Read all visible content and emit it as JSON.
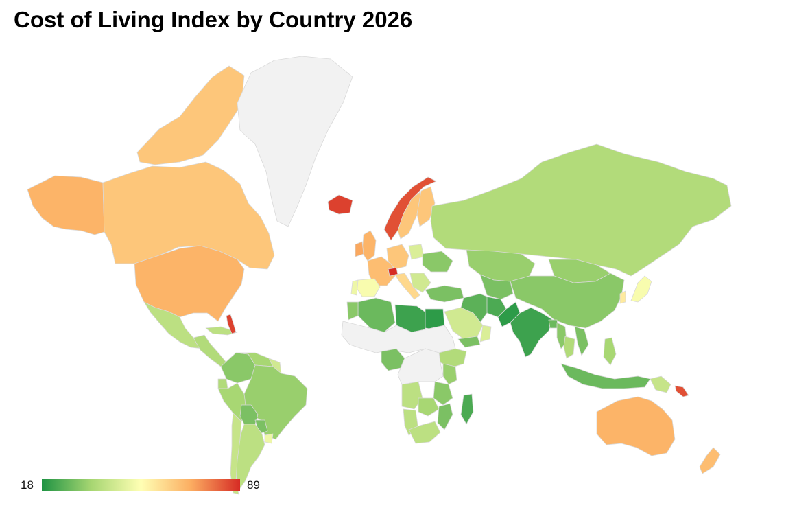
{
  "title": "Cost of Living Index by Country 2026",
  "legend": {
    "min_label": "18",
    "max_label": "89",
    "min_value": 18,
    "max_value": 89,
    "gradient_colors": [
      "#1e9343",
      "#a7d672",
      "#ffffb4",
      "#fcae62",
      "#d62b24"
    ]
  },
  "colors": {
    "no_data": "#f2f2f2",
    "border": "#d9d9d9",
    "background": "#ffffff"
  },
  "regions": [
    {
      "name": "Alaska",
      "value": 70
    },
    {
      "name": "Canada",
      "value": 66
    },
    {
      "name": "Canadian Arctic Archipelago",
      "value": 66
    },
    {
      "name": "Greenland",
      "value": null
    },
    {
      "name": "United States",
      "value": 70
    },
    {
      "name": "Mexico",
      "value": 40
    },
    {
      "name": "Central America",
      "value": 38
    },
    {
      "name": "Cuba",
      "value": 40
    },
    {
      "name": "Bahamas",
      "value": 86
    },
    {
      "name": "Colombia",
      "value": 32
    },
    {
      "name": "Venezuela",
      "value": 36
    },
    {
      "name": "Guyana",
      "value": 44
    },
    {
      "name": "Ecuador",
      "value": 38
    },
    {
      "name": "Peru",
      "value": 36
    },
    {
      "name": "Brazil",
      "value": 34
    },
    {
      "name": "Bolivia",
      "value": 30
    },
    {
      "name": "Paraguay",
      "value": 30
    },
    {
      "name": "Uruguay",
      "value": 50
    },
    {
      "name": "Argentina",
      "value": 40
    },
    {
      "name": "Chile",
      "value": 42
    },
    {
      "name": "Iceland",
      "value": 86
    },
    {
      "name": "Norway",
      "value": 84
    },
    {
      "name": "Sweden",
      "value": 66
    },
    {
      "name": "Finland",
      "value": 66
    },
    {
      "name": "United Kingdom",
      "value": 70
    },
    {
      "name": "Ireland",
      "value": 72
    },
    {
      "name": "France",
      "value": 68
    },
    {
      "name": "Spain",
      "value": 52
    },
    {
      "name": "Portugal",
      "value": 50
    },
    {
      "name": "Germany",
      "value": 66
    },
    {
      "name": "Switzerland",
      "value": 89
    },
    {
      "name": "Italy",
      "value": 62
    },
    {
      "name": "Poland",
      "value": 46
    },
    {
      "name": "Ukraine",
      "value": 32
    },
    {
      "name": "Balkans",
      "value": 44
    },
    {
      "name": "Turkey",
      "value": 30
    },
    {
      "name": "Russia",
      "value": 38
    },
    {
      "name": "Kazakhstan",
      "value": 34
    },
    {
      "name": "Central Asia",
      "value": 30
    },
    {
      "name": "Mongolia",
      "value": 34
    },
    {
      "name": "China",
      "value": 32
    },
    {
      "name": "Japan",
      "value": 52
    },
    {
      "name": "South Korea",
      "value": 58
    },
    {
      "name": "Afghanistan",
      "value": 24
    },
    {
      "name": "Iran",
      "value": 26
    },
    {
      "name": "Pakistan",
      "value": 20
    },
    {
      "name": "India",
      "value": 22
    },
    {
      "name": "Bangladesh",
      "value": 28
    },
    {
      "name": "Myanmar",
      "value": 32
    },
    {
      "name": "Thailand",
      "value": 38
    },
    {
      "name": "Vietnam",
      "value": 30
    },
    {
      "name": "Philippines",
      "value": 36
    },
    {
      "name": "Indonesia",
      "value": 28
    },
    {
      "name": "Papua New Guinea",
      "value": 42
    },
    {
      "name": "Solomon Islands",
      "value": 84
    },
    {
      "name": "Australia",
      "value": 70
    },
    {
      "name": "New Zealand",
      "value": 68
    },
    {
      "name": "Saudi Arabia",
      "value": 44
    },
    {
      "name": "Yemen",
      "value": 30
    },
    {
      "name": "Oman",
      "value": 46
    },
    {
      "name": "Algeria",
      "value": 28
    },
    {
      "name": "Libya",
      "value": 22
    },
    {
      "name": "Egypt",
      "value": 20
    },
    {
      "name": "Morocco",
      "value": 32
    },
    {
      "name": "Sahara",
      "value": null
    },
    {
      "name": "Nigeria",
      "value": 30
    },
    {
      "name": "Ethiopia",
      "value": 38
    },
    {
      "name": "Kenya",
      "value": 34
    },
    {
      "name": "Tanzania",
      "value": 32
    },
    {
      "name": "Angola",
      "value": 40
    },
    {
      "name": "Zambia",
      "value": 36
    },
    {
      "name": "Mozambique",
      "value": 30
    },
    {
      "name": "Namibia",
      "value": 40
    },
    {
      "name": "South Africa",
      "value": 40
    },
    {
      "name": "Madagascar",
      "value": 24
    },
    {
      "name": "Central Africa",
      "value": null
    }
  ]
}
